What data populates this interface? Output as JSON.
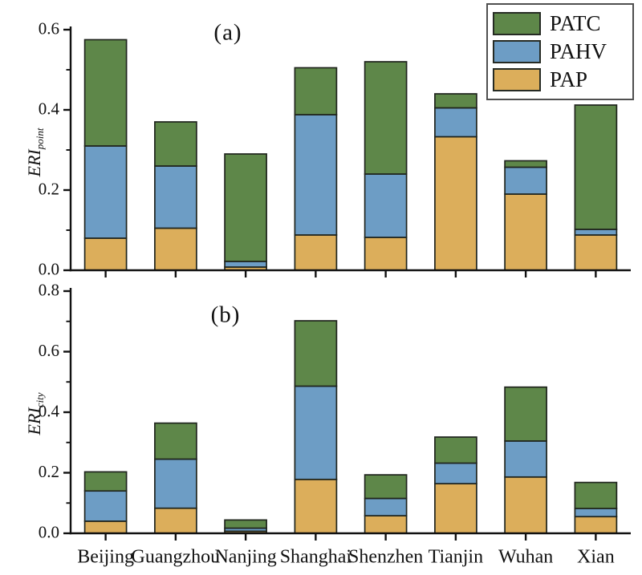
{
  "figure": {
    "background": "#ffffff"
  },
  "legend": {
    "entries": [
      {
        "label": "PATC",
        "color": "#5e8749"
      },
      {
        "label": "PAHV",
        "color": "#6d9dc5"
      },
      {
        "label": "PAP",
        "color": "#dcae5b"
      }
    ],
    "position": "top-right",
    "border_color": "#4f4f4f"
  },
  "colors": {
    "patc_green": "#5e8749",
    "pahv_blue": "#6d9dc5",
    "pap_tan": "#dcae5b",
    "bar_outline": "#1f241d",
    "axis": "#111111"
  },
  "categories": [
    "Beijing",
    "Guangzhou",
    "Nanjing",
    "Shanghai",
    "Shenzhen",
    "Tianjin",
    "Wuhan",
    "Xian"
  ],
  "chart_data": [
    {
      "type": "bar",
      "stacked": true,
      "panel_label": "(a)",
      "ylabel_main": "ERI",
      "ylabel_sub": "point",
      "categories": [
        "Beijing",
        "Guangzhou",
        "Nanjing",
        "Shanghai",
        "Shenzhen",
        "Tianjin",
        "Wuhan",
        "Xian"
      ],
      "series": [
        {
          "name": "PAP",
          "color": "#dcae5b",
          "values": [
            0.08,
            0.105,
            0.008,
            0.088,
            0.082,
            0.333,
            0.19,
            0.088
          ]
        },
        {
          "name": "PAHV",
          "color": "#6d9dc5",
          "values": [
            0.23,
            0.155,
            0.014,
            0.3,
            0.158,
            0.072,
            0.067,
            0.014
          ]
        },
        {
          "name": "PATC",
          "color": "#5e8749",
          "values": [
            0.265,
            0.11,
            0.268,
            0.117,
            0.28,
            0.035,
            0.016,
            0.31
          ]
        }
      ],
      "stack_totals": [
        0.575,
        0.37,
        0.29,
        0.505,
        0.52,
        0.44,
        0.273,
        0.412
      ],
      "ylim": [
        0,
        0.6
      ],
      "yticks": [
        0.0,
        0.2,
        0.4,
        0.6
      ],
      "minor_ytick_step": 0.1,
      "show_x_labels": false,
      "grid": false,
      "legend_position": "top-right"
    },
    {
      "type": "bar",
      "stacked": true,
      "panel_label": "(b)",
      "ylabel_main": "ERI",
      "ylabel_sub": "city",
      "categories": [
        "Beijing",
        "Guangzhou",
        "Nanjing",
        "Shanghai",
        "Shenzhen",
        "Tianjin",
        "Wuhan",
        "Xian"
      ],
      "series": [
        {
          "name": "PAP",
          "color": "#dcae5b",
          "values": [
            0.04,
            0.083,
            0.007,
            0.178,
            0.058,
            0.164,
            0.186,
            0.055
          ]
        },
        {
          "name": "PAHV",
          "color": "#6d9dc5",
          "values": [
            0.1,
            0.162,
            0.01,
            0.308,
            0.057,
            0.068,
            0.119,
            0.027
          ]
        },
        {
          "name": "PATC",
          "color": "#5e8749",
          "values": [
            0.063,
            0.119,
            0.027,
            0.216,
            0.078,
            0.086,
            0.178,
            0.086
          ]
        }
      ],
      "stack_totals": [
        0.203,
        0.364,
        0.044,
        0.702,
        0.193,
        0.318,
        0.483,
        0.168
      ],
      "ylim": [
        0,
        0.8
      ],
      "yticks": [
        0.0,
        0.2,
        0.4,
        0.6,
        0.8
      ],
      "minor_ytick_step": 0.1,
      "show_x_labels": true,
      "grid": false,
      "legend_position": "none"
    }
  ]
}
